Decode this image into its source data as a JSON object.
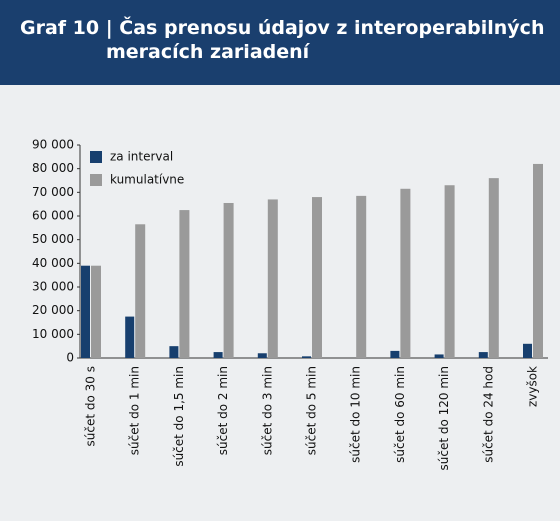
{
  "chart_data": {
    "type": "bar",
    "title": "Graf 10 | Čas prenosu údajov z interoperabilných meracích zariadení",
    "categories": [
      "súčet do 30 s",
      "súčet do 1 min",
      "súčet do 1,5 min",
      "súčet do 2 min",
      "súčet do 3 min",
      "súčet do 5 min",
      "súčet do 10 min",
      "súčet do 60 min",
      "súčet do 120 min",
      "súčet do 24 hod",
      "zvyšok"
    ],
    "series": [
      {
        "name": "za interval",
        "color": "#173f6e",
        "values": [
          39000,
          17500,
          5000,
          2500,
          2000,
          700,
          0,
          3000,
          1500,
          2500,
          6000
        ]
      },
      {
        "name": "kumulatívne",
        "color": "#9a9a9a",
        "values": [
          39000,
          56500,
          62500,
          65500,
          67000,
          68000,
          68500,
          71500,
          73000,
          76000,
          82000
        ]
      }
    ],
    "ylim": [
      0,
      90000
    ],
    "yticks": [
      0,
      {
        "value": 10000,
        "label": "10 000"
      },
      {
        "value": 20000,
        "label": "20 000"
      },
      {
        "value": 30000,
        "label": "30 000"
      },
      {
        "value": 40000,
        "label": "40 000"
      },
      {
        "value": 50000,
        "label": "50 000"
      },
      {
        "value": 60000,
        "label": "60 000"
      },
      {
        "value": 70000,
        "label": "70 000"
      },
      {
        "value": 80000,
        "label": "80 000"
      },
      {
        "value": 90000,
        "label": "90 000"
      }
    ],
    "legend": "upper-left"
  }
}
